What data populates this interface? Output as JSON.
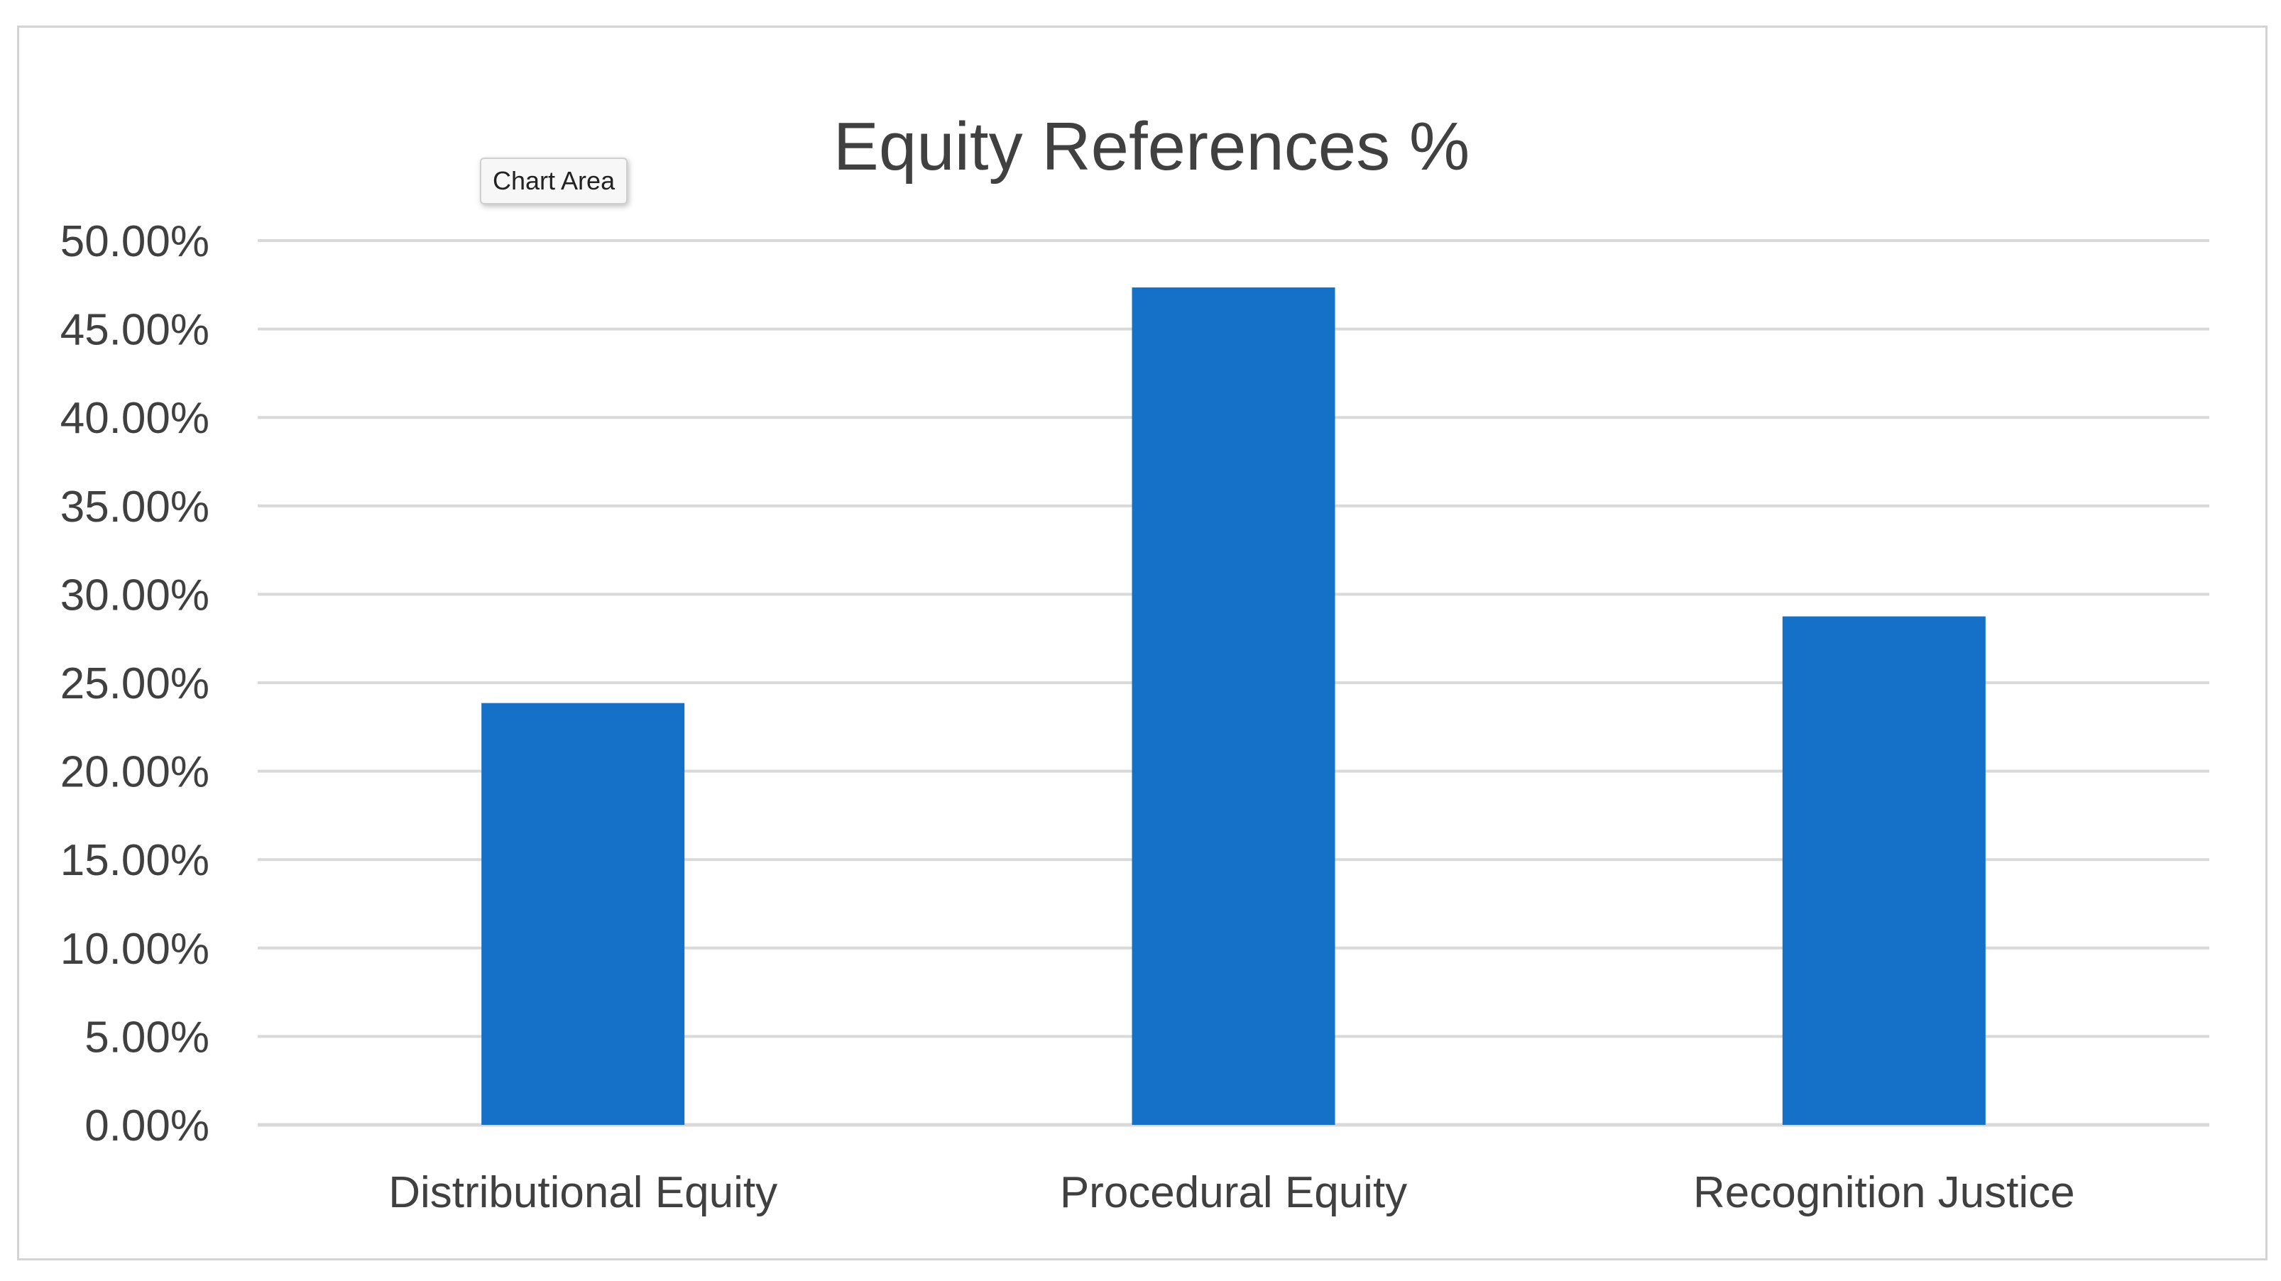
{
  "tooltip": {
    "text": "Chart Area"
  },
  "colors": {
    "bar": "#1570c8",
    "gridline": "#d9d9d9",
    "axis_text": "#404040",
    "title_text": "#404040"
  },
  "chart_data": {
    "type": "bar",
    "title": "Equity References %",
    "categories": [
      "Distributional Equity",
      "Procedural Equity",
      "Recognition Justice"
    ],
    "values": [
      0.2385,
      0.4735,
      0.2875
    ],
    "xlabel": "",
    "ylabel": "",
    "ylim": [
      0,
      0.5
    ],
    "yticks": [
      "0.00%",
      "5.00%",
      "10.00%",
      "15.00%",
      "20.00%",
      "25.00%",
      "30.00%",
      "35.00%",
      "40.00%",
      "45.00%",
      "50.00%"
    ],
    "grid": true,
    "legend": "none"
  }
}
